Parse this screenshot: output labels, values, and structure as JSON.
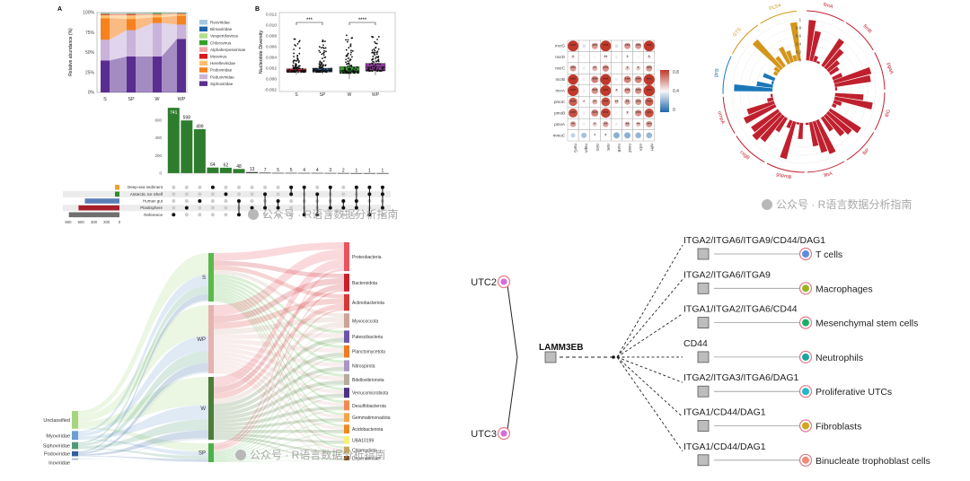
{
  "watermark": "公众号 · R语言数据分析指南",
  "chart_data": [
    {
      "id": "A",
      "type": "area",
      "panel_label": "A",
      "ylabel": "Relative abundance (%)",
      "yticks": [
        "0%",
        "25%",
        "50%",
        "75%",
        "100%"
      ],
      "categories": [
        "S",
        "SP",
        "W",
        "WP"
      ],
      "series": [
        {
          "name": "Siphoviridae",
          "color": "#5a2d91",
          "values": [
            40,
            45,
            45,
            67
          ]
        },
        {
          "name": "Peduoviridae",
          "color": "#c9b3db",
          "values": [
            26,
            33,
            42,
            18
          ]
        },
        {
          "name": "Podoviridae",
          "color": "#f6821f",
          "values": [
            27,
            14,
            7,
            11
          ]
        },
        {
          "name": "Herelleviridae",
          "color": "#fdbf6f",
          "values": [
            4,
            5,
            3.5,
            2
          ]
        },
        {
          "name": "Mesvirus",
          "color": "#d7191c",
          "values": [
            1,
            1,
            0.5,
            0.6
          ]
        },
        {
          "name": "Alphaherpesvirinae",
          "color": "#f4a3a0",
          "values": [
            0.6,
            0.6,
            0.5,
            0.5
          ]
        },
        {
          "name": "Chlorovirus",
          "color": "#33a02c",
          "values": [
            0.5,
            0.5,
            1,
            0.4
          ]
        },
        {
          "name": "Vespertiliovirus",
          "color": "#b2df8a",
          "values": [
            0.3,
            0.3,
            0.2,
            0.2
          ]
        },
        {
          "name": "Birnaviridae",
          "color": "#1f63a8",
          "values": [
            0.3,
            0.3,
            0.2,
            0.2
          ]
        },
        {
          "name": "Reoviridae",
          "color": "#a6c8e3",
          "values": [
            0.3,
            0.3,
            0.1,
            0.1
          ]
        }
      ]
    },
    {
      "id": "B",
      "type": "box",
      "panel_label": "B",
      "ylabel": "Nucleotide Diversity",
      "ylim": [
        -0.002,
        0.012
      ],
      "yticks": [
        "-0.002",
        "0.000",
        "0.002",
        "0.004",
        "0.006",
        "0.008",
        "0.010",
        "0.012"
      ],
      "groups": [
        {
          "name": "S",
          "color": "#c0243a",
          "min": 0.0008,
          "q1": 0.0013,
          "median": 0.0016,
          "q3": 0.0019,
          "max": 0.0083
        },
        {
          "name": "SP",
          "color": "#2d5b8e",
          "min": 0.0009,
          "q1": 0.0013,
          "median": 0.0016,
          "q3": 0.002,
          "max": 0.0077
        },
        {
          "name": "W",
          "color": "#3c9a3a",
          "min": 0.0,
          "q1": 0.0011,
          "median": 0.0015,
          "q3": 0.0023,
          "max": 0.0083
        },
        {
          "name": "WP",
          "color": "#8e3a9a",
          "min": 0.0007,
          "q1": 0.0015,
          "median": 0.0022,
          "q3": 0.0029,
          "max": 0.0083
        }
      ],
      "significance": [
        {
          "from": "S",
          "to": "SP",
          "label": "***"
        },
        {
          "from": "W",
          "to": "WP",
          "label": "****"
        }
      ]
    },
    {
      "id": "upset",
      "type": "bar",
      "yticks": [
        "0",
        "200",
        "400",
        "600"
      ],
      "values": [
        741,
        598,
        499,
        64,
        62,
        48,
        13,
        7,
        5,
        5,
        4,
        4,
        3,
        2,
        1,
        1,
        1
      ],
      "sets": [
        {
          "name": "Deep-sea sediment",
          "color": "#f0a030",
          "size": 10
        },
        {
          "name": "Antarctic Ice Shelf",
          "color": "#2e8b2e",
          "size": 15
        },
        {
          "name": "Human gut",
          "color": "#5b7fb5",
          "size": 540
        },
        {
          "name": "Plastisphere",
          "color": "#a81f2a",
          "size": 640
        },
        {
          "name": "Reference",
          "color": "#707070",
          "size": 790
        }
      ],
      "memberships": [
        [
          4
        ],
        [
          3
        ],
        [
          2
        ],
        [
          0
        ],
        [
          1
        ],
        [
          2,
          4
        ],
        [
          3,
          4
        ],
        [
          1,
          3
        ],
        [
          2,
          3
        ],
        [
          0,
          1
        ],
        [
          0,
          4
        ],
        [
          1,
          4
        ],
        [
          0,
          3
        ],
        [
          2,
          3
        ],
        [
          0,
          2,
          3
        ],
        [
          0,
          1,
          4
        ],
        [
          0,
          1,
          3
        ]
      ],
      "size_ticks": [
        "800",
        "600",
        "400",
        "200",
        "0"
      ],
      "bar_color": "#2e7d2e"
    },
    {
      "id": "heatmap",
      "type": "heatmap",
      "rows": [
        "mcrG",
        "mcrD",
        "mcrC",
        "mcrB",
        "mcrA",
        "pmoC",
        "pmoB",
        "pmoA",
        "mmoC"
      ],
      "cols": [
        "narG",
        "napA",
        "nirS",
        "nirK",
        "norB",
        "nosZ",
        "nrfA",
        "nifH"
      ],
      "values": [
        [
          0.85,
          0.35,
          0.6,
          0.85,
          0.35,
          0.6,
          0.6,
          0.85
        ],
        [
          0.45,
          0.4,
          0.4,
          0.45,
          0.38,
          0.42,
          0.4,
          0.45
        ],
        [
          0.6,
          0.38,
          0.55,
          0.62,
          0.4,
          0.5,
          0.5,
          0.6
        ],
        [
          0.82,
          0.38,
          0.65,
          0.85,
          0.38,
          0.65,
          0.65,
          0.85
        ],
        [
          0.85,
          0.38,
          0.62,
          0.85,
          0.45,
          0.6,
          0.62,
          0.88
        ],
        [
          0.72,
          0.42,
          0.55,
          0.75,
          0.5,
          0.58,
          0.6,
          0.72
        ],
        [
          0.75,
          0.38,
          0.65,
          0.78,
          0.4,
          0.45,
          0.62,
          0.75
        ],
        [
          0.58,
          0.38,
          0.5,
          0.58,
          0.42,
          0.55,
          0.52,
          0.6
        ],
        [
          0.3,
          0.25,
          0.4,
          0.38,
          0.2,
          0.2,
          0.22,
          0.22
        ]
      ],
      "stars": [
        [
          "***",
          "",
          "***",
          "***",
          "",
          "***",
          "***",
          "***"
        ],
        [
          "*",
          "",
          "",
          "**",
          "",
          "*",
          "",
          "*"
        ],
        [
          "***",
          "",
          "**",
          "***",
          "",
          "*",
          "*",
          "***"
        ],
        [
          "***",
          "",
          "***",
          "***",
          "",
          "***",
          "***",
          "***"
        ],
        [
          "***",
          "",
          "***",
          "***",
          "*",
          "***",
          "***",
          "***"
        ],
        [
          "***",
          "*",
          "**",
          "***",
          "**",
          "**",
          "***",
          "***"
        ],
        [
          "***",
          "",
          "***",
          "***",
          "",
          "*",
          "***",
          "***"
        ],
        [
          "**",
          "",
          "*",
          "**",
          "",
          "**",
          "**",
          "***"
        ],
        [
          "",
          "",
          "*",
          "*",
          "",
          "",
          "",
          ""
        ]
      ],
      "colorbar_ticks": [
        "0.8",
        "0.4",
        "0"
      ],
      "colors": {
        "low": "#2166ac",
        "mid": "#f7f7f7",
        "high": "#c0392b"
      }
    },
    {
      "id": "circular",
      "type": "bar",
      "radial_ticks": [
        "1",
        "0.8",
        "0.6",
        "0.4",
        "0.2",
        "0"
      ],
      "groups": [
        {
          "name": "fimA",
          "color": "#c0202e",
          "values": [
            1.0,
            0.75,
            0.15,
            0.05
          ]
        },
        {
          "name": "fimB",
          "color": "#c0202e",
          "values": [
            0.8,
            0.6,
            0.35,
            0.25
          ]
        },
        {
          "name": "pgaA",
          "color": "#c0202e",
          "values": [
            0.25,
            0.95,
            0.9,
            0.05
          ]
        },
        {
          "name": "fliG",
          "color": "#c0202e",
          "values": [
            0.7,
            0.95,
            0.2,
            0.1
          ]
        },
        {
          "name": "fliP",
          "color": "#c0202e",
          "values": [
            0.9,
            0.75,
            0.65,
            0.4
          ]
        },
        {
          "name": "flhA",
          "color": "#c0202e",
          "values": [
            0.9,
            0.8,
            0.6,
            0.05
          ]
        },
        {
          "name": "gspmB",
          "color": "#c0202e",
          "values": [
            0.4,
            0.05,
            0.95,
            0.2
          ]
        },
        {
          "name": "csgB",
          "color": "#c0202e",
          "values": [
            0.4,
            0.8,
            0.9,
            0.8
          ]
        },
        {
          "name": "ompA",
          "color": "#c0202e",
          "values": [
            0.85,
            0.7,
            0.15,
            0.05
          ]
        },
        {
          "name": "gtrB",
          "color": "#1a78b8",
          "values": [
            0.95,
            0.4,
            0.05,
            0.3
          ]
        },
        {
          "name": "GTS",
          "color": "#d4961a",
          "values": [
            0.1,
            0.15,
            0.95,
            0.3
          ]
        },
        {
          "name": "PLS4",
          "color": "#d4961a",
          "values": [
            0.45,
            0.3,
            0.15,
            0.95
          ]
        }
      ]
    },
    {
      "id": "sankey",
      "type": "sankey",
      "left": [
        {
          "name": "Unclassified",
          "color": "#a5d67e",
          "weight": 18
        },
        {
          "name": "Myoviridae",
          "color": "#6d9fd2",
          "weight": 9
        },
        {
          "name": "Siphoviridae",
          "color": "#4f9a7a",
          "weight": 7
        },
        {
          "name": "Podoviridae",
          "color": "#2f5fa0",
          "weight": 5
        },
        {
          "name": "Inoviridae",
          "color": "#9ab0d0",
          "weight": 1
        }
      ],
      "middle": [
        {
          "name": "S",
          "color": "#5cb84a",
          "weight": 54
        },
        {
          "name": "WP",
          "color": "#e5b3ae",
          "weight": 76
        },
        {
          "name": "W",
          "color": "#4d7c3b",
          "weight": 70
        },
        {
          "name": "SP",
          "color": "#4cb04a",
          "weight": 21
        }
      ],
      "right": [
        {
          "name": "Proteobacteria",
          "color": "#e8545f",
          "weight": 26
        },
        {
          "name": "Bacteroidota",
          "color": "#c8202c",
          "weight": 16
        },
        {
          "name": "Actinobacteriota",
          "color": "#d63a36",
          "weight": 15
        },
        {
          "name": "Myxococcota",
          "color": "#c9a497",
          "weight": 13
        },
        {
          "name": "Patescibacteria",
          "color": "#6a55a8",
          "weight": 11
        },
        {
          "name": "Planctomycetota",
          "color": "#ee7a22",
          "weight": 11
        },
        {
          "name": "Nitrospirota",
          "color": "#a895c4",
          "weight": 10
        },
        {
          "name": "Bdellovibrionota",
          "color": "#b5aca0",
          "weight": 10
        },
        {
          "name": "Verrucomicrobiota",
          "color": "#4d3384",
          "weight": 9
        },
        {
          "name": "Desulfobacterota",
          "color": "#ee8a52",
          "weight": 9
        },
        {
          "name": "Gemmatimonadota",
          "color": "#f2a44a",
          "weight": 8
        },
        {
          "name": "Acidobacteriota",
          "color": "#ee8a22",
          "weight": 8
        },
        {
          "name": "UBA10199",
          "color": "#f4f27a",
          "weight": 7
        },
        {
          "name": "Chlamydiota",
          "color": "#c8a860",
          "weight": 6
        },
        {
          "name": "Dependentiae",
          "color": "#7a4a20",
          "weight": 4
        }
      ]
    }
  ],
  "network": {
    "sources": [
      {
        "name": "UTC2",
        "fill": "#d96bd9"
      },
      {
        "name": "UTC3",
        "fill": "#d96bd9"
      }
    ],
    "ligand": "LAMM3EB",
    "targets": [
      {
        "receptor": "ITGA2/ITGA6/ITGA9/CD44/DAG1",
        "cell": "T cells",
        "color": "#5a8fe0"
      },
      {
        "receptor": "ITGA2/ITGA6/ITGA9",
        "cell": "Macrophages",
        "color": "#9ab422"
      },
      {
        "receptor": "ITGA1/ITGA2/ITGA6/CD44",
        "cell": "Mesenchymal stem cells",
        "color": "#1fae68"
      },
      {
        "receptor": "CD44",
        "cell": "Neutrophils",
        "color": "#1aa89e"
      },
      {
        "receptor": "ITGA2/ITGA3/ITGA6/DAG1",
        "cell": "Proliferative UTCs",
        "color": "#20b8c8"
      },
      {
        "receptor": "ITGA1/CD44/DAG1",
        "cell": "Fibroblasts",
        "color": "#d4a41c"
      },
      {
        "receptor": "ITGA1/CD44/DAG1",
        "cell": "Binucleate trophoblast cells",
        "color": "#f08a78"
      }
    ]
  }
}
